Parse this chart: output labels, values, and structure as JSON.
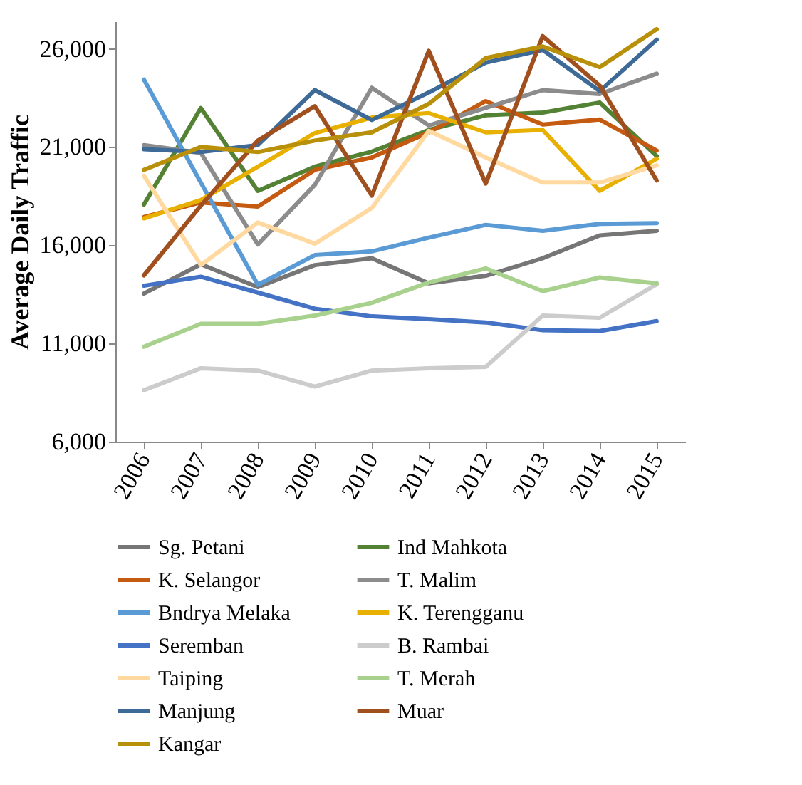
{
  "chart_data": {
    "type": "line",
    "ylabel": "Average Daily Traffic",
    "categories": [
      "2006",
      "2007",
      "2008",
      "2009",
      "2010",
      "2011",
      "2012",
      "2013",
      "2014",
      "2015"
    ],
    "ylim": [
      6000,
      27400
    ],
    "yticks": [
      {
        "value": 6000,
        "label": "6,000"
      },
      {
        "value": 11000,
        "label": "11,000"
      },
      {
        "value": 16000,
        "label": "16,000"
      },
      {
        "value": 21000,
        "label": "21,000"
      },
      {
        "value": 26000,
        "label": "26,000"
      }
    ],
    "grid": false,
    "legend": "bottom",
    "series": [
      {
        "name": "Sg. Petani",
        "color": "#767676",
        "values": [
          13540,
          15030,
          13870,
          14990,
          15340,
          14060,
          14450,
          15340,
          16500,
          16740
        ]
      },
      {
        "name": "Ind Mahkota",
        "color": "#548235",
        "values": [
          18070,
          22990,
          18770,
          20000,
          20770,
          21870,
          22620,
          22760,
          23270,
          20540
        ]
      },
      {
        "name": "K. Selangor",
        "color": "#c55a11",
        "values": [
          17440,
          18180,
          17970,
          19840,
          20470,
          21750,
          23340,
          22150,
          22400,
          20820
        ]
      },
      {
        "name": "T. Malim",
        "color": "#8c8c8c",
        "values": [
          21100,
          20700,
          16040,
          19070,
          24020,
          22100,
          23000,
          23900,
          23700,
          24740
        ]
      },
      {
        "name": "Bndrya Melaka",
        "color": "#5b9bd5",
        "values": [
          24440,
          19190,
          13990,
          15500,
          15690,
          16390,
          17040,
          16740,
          17090,
          17130
        ]
      },
      {
        "name": "K. Terengganu",
        "color": "#e8b000",
        "values": [
          17370,
          18300,
          20000,
          21710,
          22500,
          22730,
          21750,
          21870,
          18770,
          20400
        ]
      },
      {
        "name": "Seremban",
        "color": "#4472c4",
        "values": [
          13940,
          14400,
          13590,
          12770,
          12380,
          12240,
          12070,
          11680,
          11630,
          12140
        ]
      },
      {
        "name": "B. Rambai",
        "color": "#cccccc",
        "values": [
          8620,
          9740,
          9620,
          8810,
          9620,
          9740,
          9810,
          12420,
          12310,
          14010
        ]
      },
      {
        "name": "Taiping",
        "color": "#ffd9a0",
        "values": [
          19540,
          14990,
          17160,
          16080,
          17900,
          21820,
          20470,
          19190,
          19190,
          20070
        ]
      },
      {
        "name": "T. Merah",
        "color": "#a9d18e",
        "values": [
          10830,
          12000,
          12000,
          12420,
          13070,
          14100,
          14820,
          13660,
          14360,
          14060
        ]
      },
      {
        "name": "Manjung",
        "color": "#3d6a96",
        "values": [
          20890,
          20750,
          21100,
          23900,
          22380,
          23780,
          25300,
          25950,
          23850,
          26470
        ]
      },
      {
        "name": "Muar",
        "color": "#a0501e",
        "values": [
          14470,
          18020,
          21330,
          23080,
          18530,
          25900,
          19140,
          26650,
          24130,
          19300
        ]
      },
      {
        "name": "Kangar",
        "color": "#b8900a",
        "values": [
          19840,
          21010,
          20750,
          21330,
          21750,
          23200,
          25530,
          26120,
          25070,
          27000
        ]
      }
    ]
  }
}
